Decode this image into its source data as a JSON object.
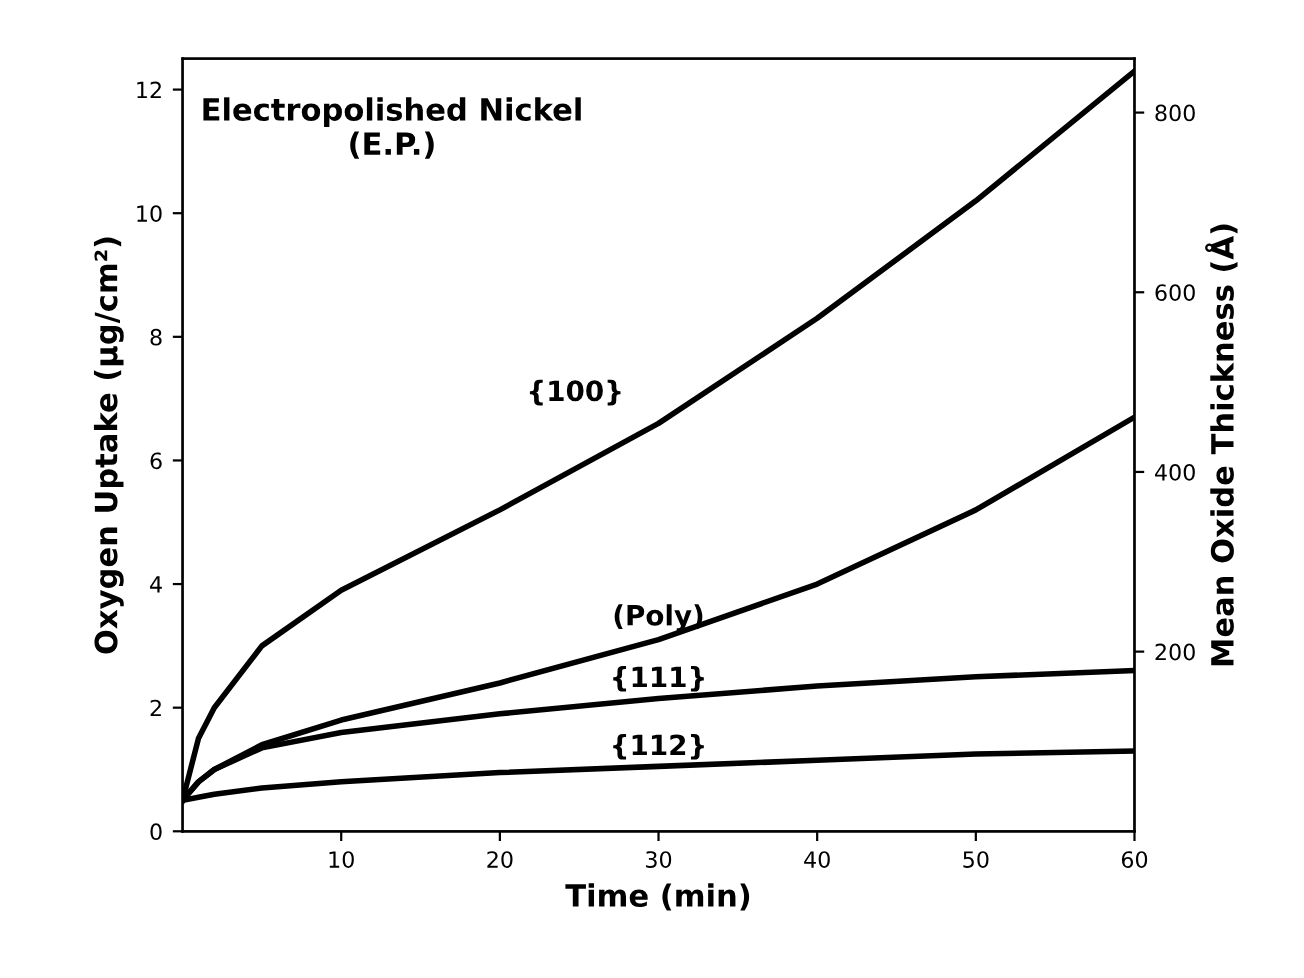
{
  "chart_data": {
    "type": "line",
    "title": "Electropolished Nickel\n(E.P.)",
    "xlabel": "Time (min)",
    "ylabel": "Oxygen Uptake (µg/cm²)",
    "y2label": "Mean Oxide Thickness (Å)",
    "x": [
      0,
      1,
      2,
      5,
      10,
      20,
      30,
      40,
      50,
      60
    ],
    "series": [
      {
        "name": "{100}",
        "color": "#000000",
        "values": [
          0.5,
          1.5,
          2.0,
          3.0,
          3.9,
          5.2,
          6.6,
          8.3,
          10.2,
          12.3
        ]
      },
      {
        "name": "(Poly)",
        "color": "#000000",
        "values": [
          0.5,
          0.8,
          1.0,
          1.4,
          1.8,
          2.4,
          3.1,
          4.0,
          5.2,
          6.7
        ]
      },
      {
        "name": "{111}",
        "color": "#000000",
        "values": [
          0.5,
          0.8,
          1.0,
          1.35,
          1.6,
          1.9,
          2.15,
          2.35,
          2.5,
          2.6
        ]
      },
      {
        "name": "{112}",
        "color": "#000000",
        "values": [
          0.5,
          0.55,
          0.6,
          0.7,
          0.8,
          0.95,
          1.05,
          1.15,
          1.25,
          1.3
        ]
      }
    ],
    "xlim": [
      0,
      60
    ],
    "xticks": [
      10,
      20,
      30,
      40,
      50,
      60
    ],
    "ylim": [
      0,
      12.5
    ],
    "yticks": [
      0,
      2,
      4,
      6,
      8,
      10,
      12
    ],
    "y2lim": [
      0,
      860
    ],
    "y2ticks": [
      200,
      400,
      600,
      800
    ],
    "line_style": "solid",
    "marker": "none",
    "grid": false,
    "legend": false
  }
}
